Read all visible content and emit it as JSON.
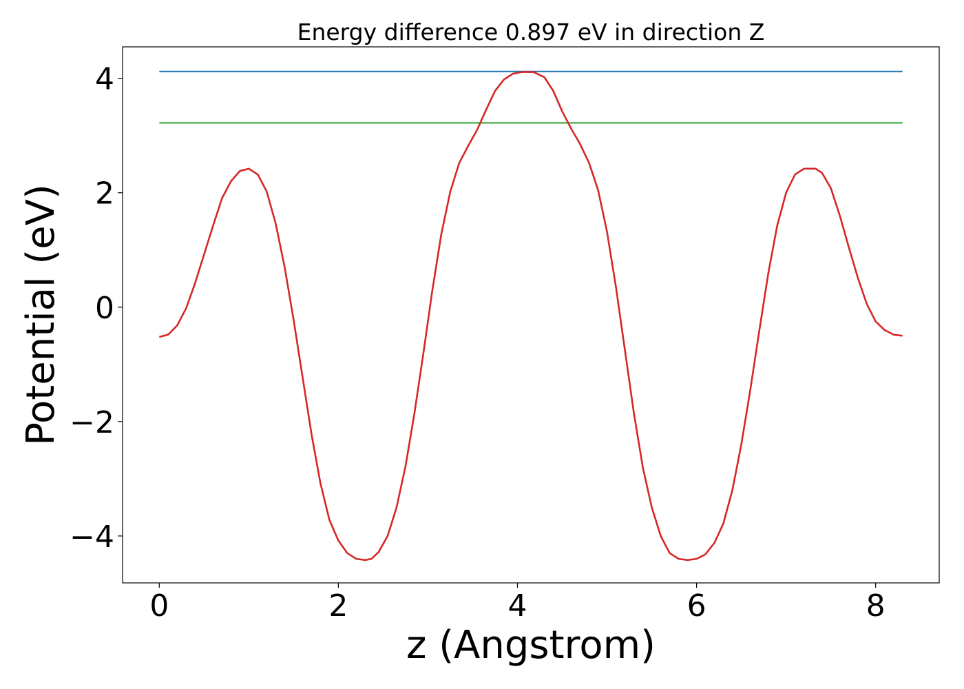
{
  "chart_data": {
    "type": "line",
    "title": "Energy difference 0.897 eV in direction Z",
    "xlabel": "z (Angstrom)",
    "ylabel": "Potential (eV)",
    "xlim": [
      -0.41,
      8.71
    ],
    "ylim": [
      -4.82,
      4.55
    ],
    "x_ticks": [
      0,
      2,
      4,
      6,
      8
    ],
    "x_tick_labels": [
      "0",
      "2",
      "4",
      "6",
      "8"
    ],
    "y_ticks": [
      -4,
      -2,
      0,
      2,
      4
    ],
    "y_tick_labels": [
      "−4",
      "−2",
      "0",
      "2",
      "4"
    ],
    "grid": false,
    "series": [
      {
        "color": "#1f77b4",
        "x": [
          0,
          8.3
        ],
        "y": [
          4.12,
          4.12
        ]
      },
      {
        "color": "#2ca02c",
        "x": [
          0,
          8.3
        ],
        "y": [
          3.22,
          3.22
        ]
      },
      {
        "color": "#d62728",
        "x": [
          0,
          0.1,
          0.2,
          0.3,
          0.4,
          0.5,
          0.6,
          0.7,
          0.8,
          0.9,
          1.0,
          1.1,
          1.2,
          1.3,
          1.4,
          1.5,
          1.6,
          1.7,
          1.8,
          1.9,
          2.0,
          2.1,
          2.2,
          2.3,
          2.37,
          2.45,
          2.55,
          2.65,
          2.75,
          2.85,
          2.95,
          3.05,
          3.15,
          3.25,
          3.35,
          3.45,
          3.55,
          3.65,
          3.75,
          3.85,
          3.95,
          4.05,
          4.18,
          4.3,
          4.4,
          4.5,
          4.6,
          4.7,
          4.8,
          4.9,
          5.0,
          5.1,
          5.2,
          5.3,
          5.4,
          5.5,
          5.6,
          5.7,
          5.8,
          5.9,
          6.0,
          6.1,
          6.2,
          6.3,
          6.4,
          6.5,
          6.6,
          6.7,
          6.8,
          6.9,
          7.0,
          7.1,
          7.2,
          7.33,
          7.4,
          7.5,
          7.6,
          7.7,
          7.8,
          7.9,
          8.0,
          8.1,
          8.2,
          8.3
        ],
        "y": [
          -0.52,
          -0.48,
          -0.32,
          -0.02,
          0.42,
          0.92,
          1.42,
          1.9,
          2.2,
          2.38,
          2.42,
          2.32,
          2.02,
          1.46,
          0.7,
          -0.22,
          -1.22,
          -2.22,
          -3.08,
          -3.72,
          -4.08,
          -4.3,
          -4.4,
          -4.42,
          -4.4,
          -4.28,
          -4.0,
          -3.5,
          -2.78,
          -1.85,
          -0.8,
          0.3,
          1.28,
          2.02,
          2.52,
          2.82,
          3.1,
          3.45,
          3.78,
          3.98,
          4.08,
          4.11,
          4.11,
          4.02,
          3.78,
          3.42,
          3.12,
          2.85,
          2.52,
          2.05,
          1.32,
          0.35,
          -0.75,
          -1.85,
          -2.8,
          -3.5,
          -4.0,
          -4.3,
          -4.4,
          -4.42,
          -4.4,
          -4.32,
          -4.12,
          -3.78,
          -3.2,
          -2.4,
          -1.45,
          -0.42,
          0.58,
          1.42,
          2.0,
          2.32,
          2.42,
          2.42,
          2.35,
          2.08,
          1.6,
          1.05,
          0.52,
          0.06,
          -0.25,
          -0.4,
          -0.48,
          -0.5
        ]
      }
    ]
  }
}
